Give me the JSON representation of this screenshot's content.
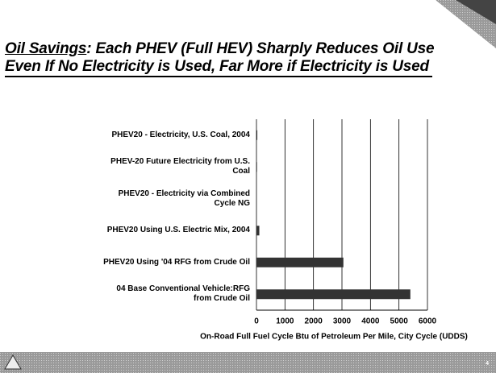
{
  "slide": {
    "title_emphasis": "Oil Savings",
    "title_line1_rest": ": Each PHEV (Full HEV) Sharply Reduces Oil Use",
    "title_line2": "Even If No Electricity is Used, Far More if Electricity is Used",
    "page_number": "4"
  },
  "chart_data": {
    "type": "barh",
    "categories": [
      "PHEV20 - Electricity, U.S. Coal, 2004",
      "PHEV-20 Future Electricity from U.S. Coal",
      "PHEV20 - Electricity via Combined Cycle NG",
      "PHEV20 Using U.S. Electric Mix, 2004",
      "PHEV20 Using '04 RFG from Crude Oil",
      "04 Base Conventional Vehicle:RFG from Crude Oil"
    ],
    "values": [
      30,
      20,
      0,
      100,
      3050,
      5400
    ],
    "color": "#333333",
    "xlim": [
      0,
      6000
    ],
    "xticks": [
      0,
      1000,
      2000,
      3000,
      4000,
      5000,
      6000
    ],
    "xlabel": "On-Road Full Fuel Cycle Btu of Petroleum Per Mile, City Cycle (UDDS)",
    "grid": true
  }
}
